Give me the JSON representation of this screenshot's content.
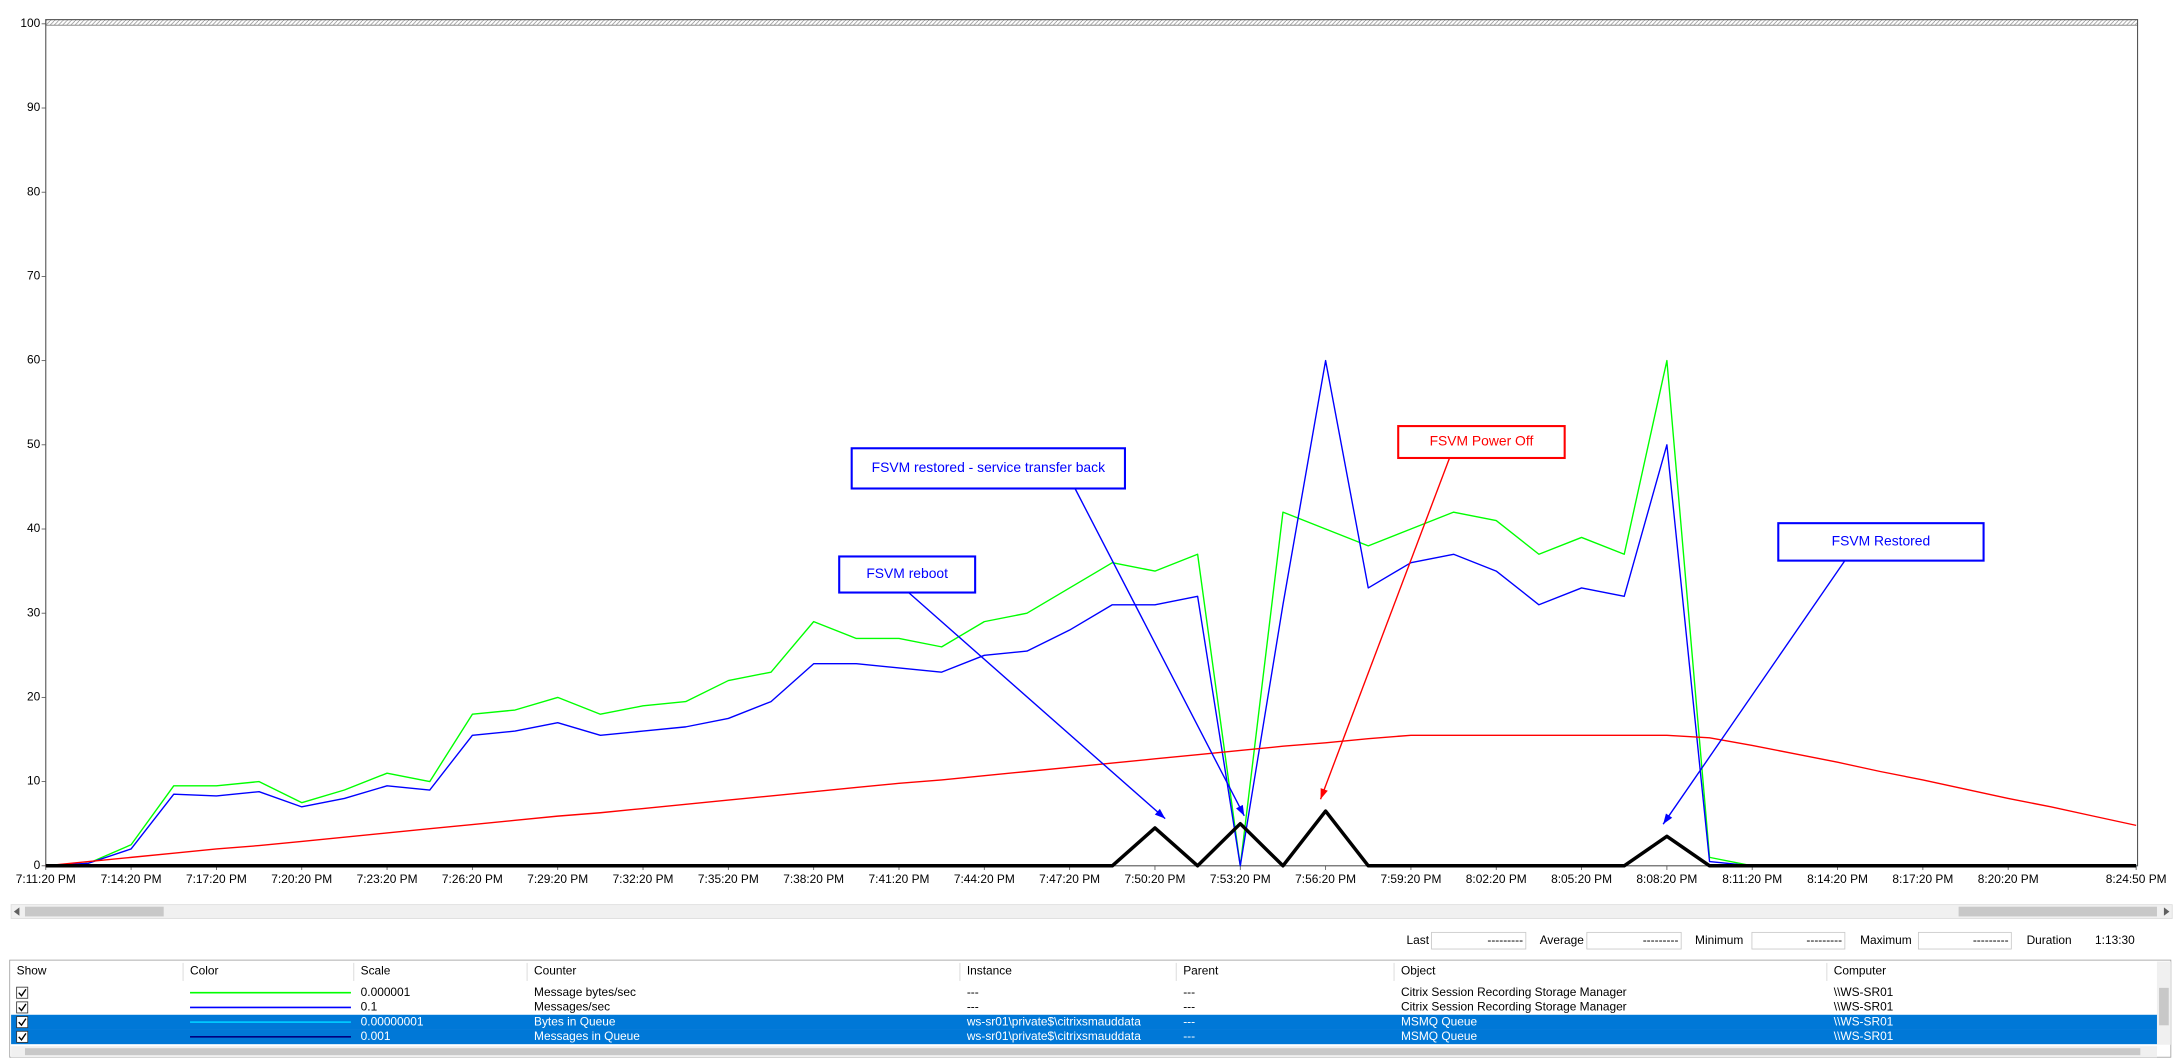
{
  "chart_data": {
    "type": "line",
    "x": [
      69080,
      69170,
      69260,
      69350,
      69440,
      69530,
      69620,
      69710,
      69800,
      69890,
      69980,
      70070,
      70160,
      70250,
      70340,
      70430,
      70520,
      70610,
      70700,
      70790,
      70880,
      70970,
      71060,
      71150,
      71240,
      71330,
      71420,
      71510,
      71600,
      71690,
      71780,
      71870,
      71960,
      72050,
      72140,
      72230,
      72320,
      72410,
      72500,
      72590,
      72680,
      72770,
      72860,
      72950,
      73040,
      73130,
      73220,
      73310,
      73400,
      73490
    ],
    "xlim": [
      69080,
      73490
    ],
    "xticks": [
      {
        "value": 69080,
        "label": "7:11:20 PM"
      },
      {
        "value": 69260,
        "label": "7:14:20 PM"
      },
      {
        "value": 69440,
        "label": "7:17:20 PM"
      },
      {
        "value": 69620,
        "label": "7:20:20 PM"
      },
      {
        "value": 69800,
        "label": "7:23:20 PM"
      },
      {
        "value": 69980,
        "label": "7:26:20 PM"
      },
      {
        "value": 70160,
        "label": "7:29:20 PM"
      },
      {
        "value": 70340,
        "label": "7:32:20 PM"
      },
      {
        "value": 70520,
        "label": "7:35:20 PM"
      },
      {
        "value": 70700,
        "label": "7:38:20 PM"
      },
      {
        "value": 70880,
        "label": "7:41:20 PM"
      },
      {
        "value": 71060,
        "label": "7:44:20 PM"
      },
      {
        "value": 71240,
        "label": "7:47:20 PM"
      },
      {
        "value": 71420,
        "label": "7:50:20 PM"
      },
      {
        "value": 71600,
        "label": "7:53:20 PM"
      },
      {
        "value": 71780,
        "label": "7:56:20 PM"
      },
      {
        "value": 71960,
        "label": "7:59:20 PM"
      },
      {
        "value": 72140,
        "label": "8:02:20 PM"
      },
      {
        "value": 72320,
        "label": "8:05:20 PM"
      },
      {
        "value": 72500,
        "label": "8:08:20 PM"
      },
      {
        "value": 72680,
        "label": "8:11:20 PM"
      },
      {
        "value": 72860,
        "label": "8:14:20 PM"
      },
      {
        "value": 73040,
        "label": "8:17:20 PM"
      },
      {
        "value": 73220,
        "label": "8:20:20 PM"
      },
      {
        "value": 73490,
        "label": "8:24:50 PM"
      }
    ],
    "ylim": [
      0,
      100
    ],
    "yticks": [
      0,
      10,
      20,
      30,
      40,
      50,
      60,
      70,
      80,
      90,
      100
    ],
    "series": [
      {
        "name": "Message bytes/sec",
        "color": "#00ff00",
        "width": 1,
        "values": [
          0,
          0.3,
          2.5,
          9.5,
          9.5,
          10,
          7.5,
          9,
          11,
          10,
          18,
          18.5,
          20,
          18,
          19,
          19.5,
          22,
          23,
          29,
          27,
          27,
          26,
          29,
          30,
          33,
          36,
          35,
          37,
          0,
          42,
          40,
          38,
          40,
          42,
          41,
          37,
          39,
          37,
          60,
          1,
          0,
          0,
          0,
          0,
          0,
          0,
          0,
          0,
          0,
          0
        ]
      },
      {
        "name": "Messages/sec",
        "color": "#0000ff",
        "width": 1,
        "values": [
          0,
          0.3,
          2,
          8.5,
          8.3,
          8.8,
          7,
          8,
          9.5,
          9,
          15.5,
          16,
          17,
          15.5,
          16,
          16.5,
          17.5,
          19.5,
          24,
          24,
          23.5,
          23,
          25,
          25.5,
          28,
          31,
          31,
          32,
          0,
          31,
          60,
          33,
          36,
          37,
          35,
          31,
          33,
          32,
          50,
          0.5,
          0,
          0,
          0,
          0,
          0,
          0,
          0,
          0,
          0,
          0
        ]
      },
      {
        "name": "Bytes in Queue",
        "color": "#ff0000",
        "width": 1,
        "values": [
          0,
          0.5,
          1,
          1.5,
          2,
          2.4,
          2.9,
          3.4,
          3.9,
          4.4,
          4.9,
          5.4,
          5.9,
          6.3,
          6.8,
          7.3,
          7.8,
          8.3,
          8.8,
          9.3,
          9.8,
          10.2,
          10.7,
          11.2,
          11.7,
          12.2,
          12.7,
          13.2,
          13.7,
          14.2,
          14.6,
          15.1,
          15.5,
          15.5,
          15.5,
          15.5,
          15.5,
          15.5,
          15.5,
          15.2,
          14.3,
          13.3,
          12.3,
          11.2,
          10.2,
          9.1,
          8,
          7,
          5.9,
          4.8
        ]
      },
      {
        "name": "Messages in Queue",
        "color": "#000000",
        "width": 2.5,
        "values": [
          0,
          0,
          0,
          0,
          0,
          0,
          0,
          0,
          0,
          0,
          0,
          0,
          0,
          0,
          0,
          0,
          0,
          0,
          0,
          0,
          0,
          0,
          0,
          0,
          0,
          0,
          4.5,
          0,
          5,
          0,
          6.5,
          0,
          0,
          0,
          0,
          0,
          0,
          0,
          3.5,
          0,
          0,
          0,
          0,
          0,
          0,
          0,
          0,
          0,
          0,
          0
        ]
      }
    ],
    "annotations": [
      {
        "text": "FSVM restored - service transfer back",
        "color": "#0000ff"
      },
      {
        "text": "FSVM reboot",
        "color": "#0000ff"
      },
      {
        "text": "FSVM Power Off",
        "color": "#ff0000"
      },
      {
        "text": "FSVM Restored",
        "color": "#0000ff"
      }
    ]
  },
  "stats": [
    {
      "label": "Last",
      "value": "---------"
    },
    {
      "label": "Average",
      "value": "---------"
    },
    {
      "label": "Minimum",
      "value": "---------"
    },
    {
      "label": "Maximum",
      "value": "---------"
    },
    {
      "label": "Duration",
      "value": "1:13:30"
    }
  ],
  "table": {
    "columns": [
      "Show",
      "Color",
      "Scale",
      "Counter",
      "Instance",
      "Parent",
      "Object",
      "Computer"
    ],
    "rows": [
      {
        "show": true,
        "swatch": "#00ff00",
        "scale": "0.000001",
        "instance": "---",
        "parent": "---",
        "object": "Citrix Session Recording Storage Manager",
        "computer": "\\\\WS-SR01",
        "selected": false
      },
      {
        "show": true,
        "swatch": "#0000ff",
        "scale": "0.1",
        "instance": "---",
        "parent": "---",
        "object": "Citrix Session Recording Storage Manager",
        "computer": "\\\\WS-SR01",
        "selected": false
      },
      {
        "show": true,
        "swatch": "#00c8ff",
        "scale": "0.00000001",
        "instance": "ws-sr01\\private$\\citrixsmauddata",
        "parent": "---",
        "object": "MSMQ Queue",
        "computer": "\\\\WS-SR01",
        "selected": true
      },
      {
        "show": true,
        "swatch": "#000080",
        "scale": "0.001",
        "instance": "ws-sr01\\private$\\citrixsmauddata",
        "parent": "---",
        "object": "MSMQ Queue",
        "computer": "\\\\WS-SR01",
        "selected": true
      }
    ]
  }
}
